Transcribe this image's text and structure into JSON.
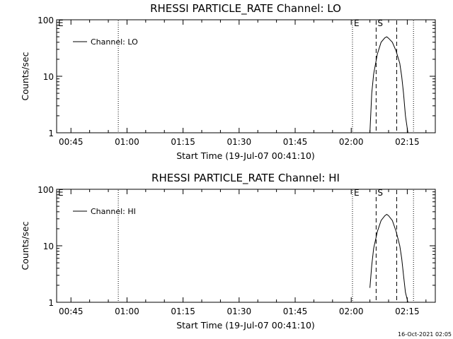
{
  "colors": {
    "background": "#ffffff",
    "foreground": "#000000"
  },
  "footer": {
    "timestamp": "16-Oct-2021 02:05"
  },
  "chart_data": [
    {
      "type": "line",
      "title": "RHESSI PARTICLE_RATE Channel: LO",
      "xlabel": "Start Time (19-Jul-07 00:41:10)",
      "ylabel": "Counts/sec",
      "yscale": "log",
      "ylim": [
        1,
        100
      ],
      "xlim": [
        "00:41:10",
        "02:22:30"
      ],
      "x_ticks": [
        "00:45",
        "01:00",
        "01:15",
        "01:30",
        "01:45",
        "02:00",
        "02:15"
      ],
      "y_ticks": [
        "1",
        "10",
        "100"
      ],
      "grid": false,
      "legend": {
        "position": "top-left",
        "entries": [
          "Channel: LO"
        ]
      },
      "markers": [
        {
          "label": "E",
          "time": "00:41:10",
          "style": "none"
        },
        {
          "label": "",
          "time": "00:57:40",
          "style": "dotted"
        },
        {
          "label": "E",
          "time": "02:00:20",
          "style": "dotted"
        },
        {
          "label": "S",
          "time": "02:06:40",
          "style": "dashed"
        },
        {
          "label": "",
          "time": "02:12:10",
          "style": "dashed"
        },
        {
          "label": "",
          "time": "02:16:40",
          "style": "dotted"
        }
      ],
      "series": [
        {
          "name": "Channel: LO",
          "x": [
            "02:05:00",
            "02:05:30",
            "02:06:00",
            "02:07:00",
            "02:08:00",
            "02:09:00",
            "02:09:30",
            "02:10:00",
            "02:11:00",
            "02:12:00",
            "02:13:00",
            "02:13:30",
            "02:14:00",
            "02:14:30",
            "02:15:10"
          ],
          "values": [
            1.0,
            5.0,
            11.0,
            25.0,
            40.0,
            48.0,
            50.0,
            47.0,
            40.0,
            28.0,
            17.0,
            10.0,
            5.0,
            2.0,
            1.0
          ]
        }
      ]
    },
    {
      "type": "line",
      "title": "RHESSI PARTICLE_RATE Channel: HI",
      "xlabel": "Start Time (19-Jul-07 00:41:10)",
      "ylabel": "Counts/sec",
      "yscale": "log",
      "ylim": [
        1,
        100
      ],
      "xlim": [
        "00:41:10",
        "02:22:30"
      ],
      "x_ticks": [
        "00:45",
        "01:00",
        "01:15",
        "01:30",
        "01:45",
        "02:00",
        "02:15"
      ],
      "y_ticks": [
        "1",
        "10",
        "100"
      ],
      "grid": false,
      "legend": {
        "position": "top-left",
        "entries": [
          "Channel: HI"
        ]
      },
      "markers": [
        {
          "label": "E",
          "time": "00:41:10",
          "style": "none"
        },
        {
          "label": "",
          "time": "00:57:40",
          "style": "dotted"
        },
        {
          "label": "E",
          "time": "02:00:20",
          "style": "dotted"
        },
        {
          "label": "S",
          "time": "02:06:40",
          "style": "dashed"
        },
        {
          "label": "",
          "time": "02:12:10",
          "style": "dashed"
        },
        {
          "label": "",
          "time": "02:16:40",
          "style": "dotted"
        }
      ],
      "series": [
        {
          "name": "Channel: HI",
          "x": [
            "02:05:00",
            "02:05:30",
            "02:06:00",
            "02:07:00",
            "02:08:00",
            "02:09:00",
            "02:09:30",
            "02:10:00",
            "02:11:00",
            "02:12:00",
            "02:13:00",
            "02:13:30",
            "02:14:00",
            "02:14:30",
            "02:15:10"
          ],
          "values": [
            1.8,
            4.5,
            9.0,
            18.0,
            28.0,
            34.0,
            36.0,
            34.0,
            28.0,
            18.0,
            10.0,
            6.0,
            3.0,
            1.5,
            1.0
          ]
        }
      ]
    }
  ]
}
